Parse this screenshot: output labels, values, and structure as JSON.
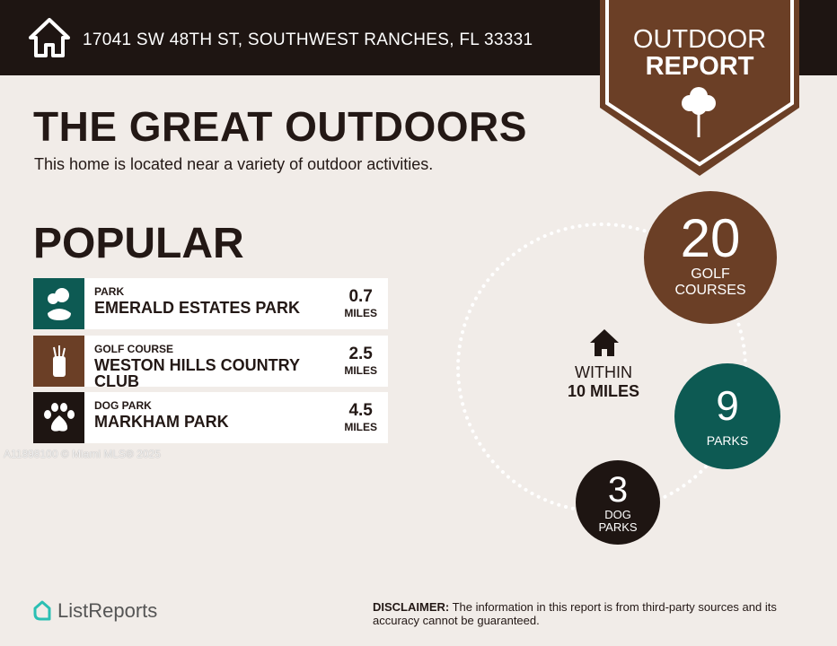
{
  "header": {
    "address": "17041 SW 48TH ST, SOUTHWEST RANCHES, FL 33331",
    "icon": "house-icon"
  },
  "badge": {
    "line1": "OUTDOOR",
    "line2": "REPORT",
    "icon": "tree-icon",
    "color": "#6b3f26"
  },
  "title": "THE GREAT OUTDOORS",
  "subtitle": "This home is located near a variety of outdoor activities.",
  "popular": {
    "heading": "POPULAR",
    "items": [
      {
        "category": "PARK",
        "name": "EMERALD ESTATES PARK",
        "distance": "0.7",
        "unit": "MILES",
        "icon": "park-icon",
        "color": "#0d5a53"
      },
      {
        "category": "GOLF COURSE",
        "name": "WESTON HILLS COUNTRY CLUB",
        "distance": "2.5",
        "unit": "MILES",
        "icon": "golf-bag-icon",
        "color": "#6b3f26"
      },
      {
        "category": "DOG PARK",
        "name": "MARKHAM PARK",
        "distance": "4.5",
        "unit": "MILES",
        "icon": "paw-icon",
        "color": "#1e1512"
      }
    ]
  },
  "watermark": "A11898100 © Miami MLS® 2025",
  "summary": {
    "within_line1": "WITHIN",
    "within_line2": "10 MILES",
    "golf": {
      "count": "20",
      "label1": "GOLF",
      "label2": "COURSES"
    },
    "parks": {
      "count": "9",
      "label": "PARKS"
    },
    "dog": {
      "count": "3",
      "label1": "DOG",
      "label2": "PARKS"
    }
  },
  "footer": {
    "logo": "ListReports",
    "disclaimer_label": "DISCLAIMER:",
    "disclaimer": " The information in this report is from third-party sources and its accuracy cannot be guaranteed."
  }
}
